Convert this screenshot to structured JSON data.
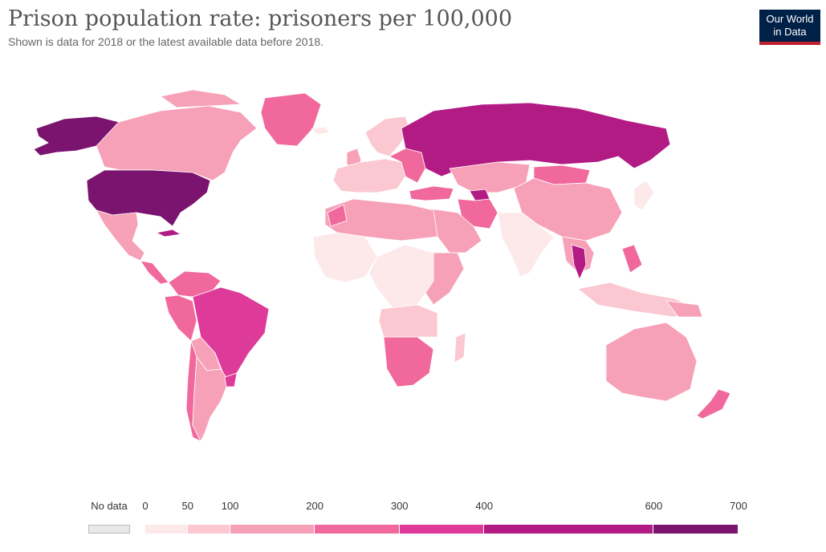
{
  "header": {
    "title": "Prison population rate: prisoners per 100,000",
    "subtitle": "Shown is data for 2018 or the latest available data before 2018."
  },
  "logo": {
    "line1": "Our World",
    "line2": "in Data"
  },
  "legend": {
    "no_data_label": "No data",
    "ticks": [
      "0",
      "50",
      "100",
      "200",
      "300",
      "400",
      "600",
      "700"
    ],
    "bins": [
      {
        "from": 0,
        "to": 50,
        "color": "#fde8ea"
      },
      {
        "from": 50,
        "to": 100,
        "color": "#fbc7d0"
      },
      {
        "from": 100,
        "to": 200,
        "color": "#f7a1b8"
      },
      {
        "from": 200,
        "to": 300,
        "color": "#f0689c"
      },
      {
        "from": 300,
        "to": 400,
        "color": "#dd3a9a"
      },
      {
        "from": 400,
        "to": 600,
        "color": "#b21b84"
      },
      {
        "from": 600,
        "to": 700,
        "color": "#7a146e"
      }
    ],
    "no_data_color": "#e8e8e8"
  },
  "chart_data": {
    "type": "choropleth",
    "title": "Prison population rate: prisoners per 100,000",
    "subtitle": "Shown is data for 2018 or the latest available data before 2018.",
    "scale_min": 0,
    "scale_max": 700,
    "regions": [
      {
        "name": "United States",
        "bin": "600-700"
      },
      {
        "name": "Alaska",
        "bin": "600-700"
      },
      {
        "name": "Russia",
        "bin": "400-600"
      },
      {
        "name": "Thailand",
        "bin": "400-600"
      },
      {
        "name": "Turkmenistan",
        "bin": "400-600"
      },
      {
        "name": "Brazil",
        "bin": "300-400"
      },
      {
        "name": "Cuba",
        "bin": "400-600"
      },
      {
        "name": "Colombia",
        "bin": "200-300"
      },
      {
        "name": "Peru",
        "bin": "200-300"
      },
      {
        "name": "Uruguay",
        "bin": "300-400"
      },
      {
        "name": "South Africa",
        "bin": "200-300"
      },
      {
        "name": "Namibia",
        "bin": "200-300"
      },
      {
        "name": "Botswana",
        "bin": "200-300"
      },
      {
        "name": "Iran",
        "bin": "200-300"
      },
      {
        "name": "Mongolia",
        "bin": "200-300"
      },
      {
        "name": "Greenland",
        "bin": "200-300"
      },
      {
        "name": "Turkey",
        "bin": "200-300"
      },
      {
        "name": "New Zealand",
        "bin": "200-300"
      },
      {
        "name": "Canada",
        "bin": "100-200"
      },
      {
        "name": "Mexico",
        "bin": "100-200"
      },
      {
        "name": "Argentina",
        "bin": "100-200"
      },
      {
        "name": "Chile",
        "bin": "200-300"
      },
      {
        "name": "China",
        "bin": "100-200"
      },
      {
        "name": "Australia",
        "bin": "100-200"
      },
      {
        "name": "Kazakhstan",
        "bin": "100-200"
      },
      {
        "name": "Saudi Arabia",
        "bin": "100-200"
      },
      {
        "name": "Algeria",
        "bin": "100-200"
      },
      {
        "name": "Libya",
        "bin": "50-100"
      },
      {
        "name": "Egypt",
        "bin": "50-100"
      },
      {
        "name": "Western Europe",
        "bin": "50-100"
      },
      {
        "name": "India",
        "bin": "0-50"
      },
      {
        "name": "Niger",
        "bin": "0-50"
      },
      {
        "name": "Mali",
        "bin": "0-50"
      },
      {
        "name": "DR Congo",
        "bin": "0-50"
      },
      {
        "name": "Nigeria",
        "bin": "0-50"
      },
      {
        "name": "Indonesia",
        "bin": "50-100"
      },
      {
        "name": "Madagascar",
        "bin": "50-100"
      }
    ]
  }
}
